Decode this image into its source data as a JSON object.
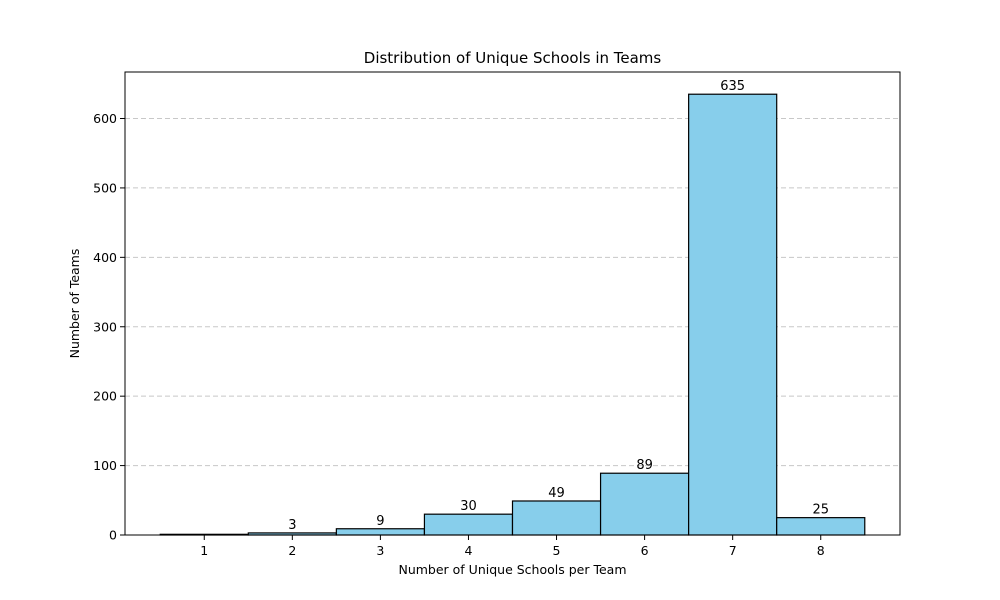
{
  "chart_data": {
    "type": "bar",
    "title": "Distribution of Unique Schools in Teams",
    "xlabel": "Number of Unique Schools per Team",
    "ylabel": "Number of Teams",
    "categories": [
      1,
      2,
      3,
      4,
      5,
      6,
      7,
      8
    ],
    "values": [
      1,
      3,
      9,
      30,
      49,
      89,
      635,
      25
    ],
    "data_labels": [
      "",
      "3",
      "9",
      "30",
      "49",
      "89",
      "635",
      "25"
    ],
    "xlim": [
      0.1,
      8.9
    ],
    "ylim": [
      0,
      667
    ],
    "yticks": [
      0,
      100,
      200,
      300,
      400,
      500,
      600
    ],
    "grid": "y-dashed",
    "bar_color": "#87CEEB",
    "edge_color": "#000000",
    "grid_color": "#c8c8c8"
  }
}
